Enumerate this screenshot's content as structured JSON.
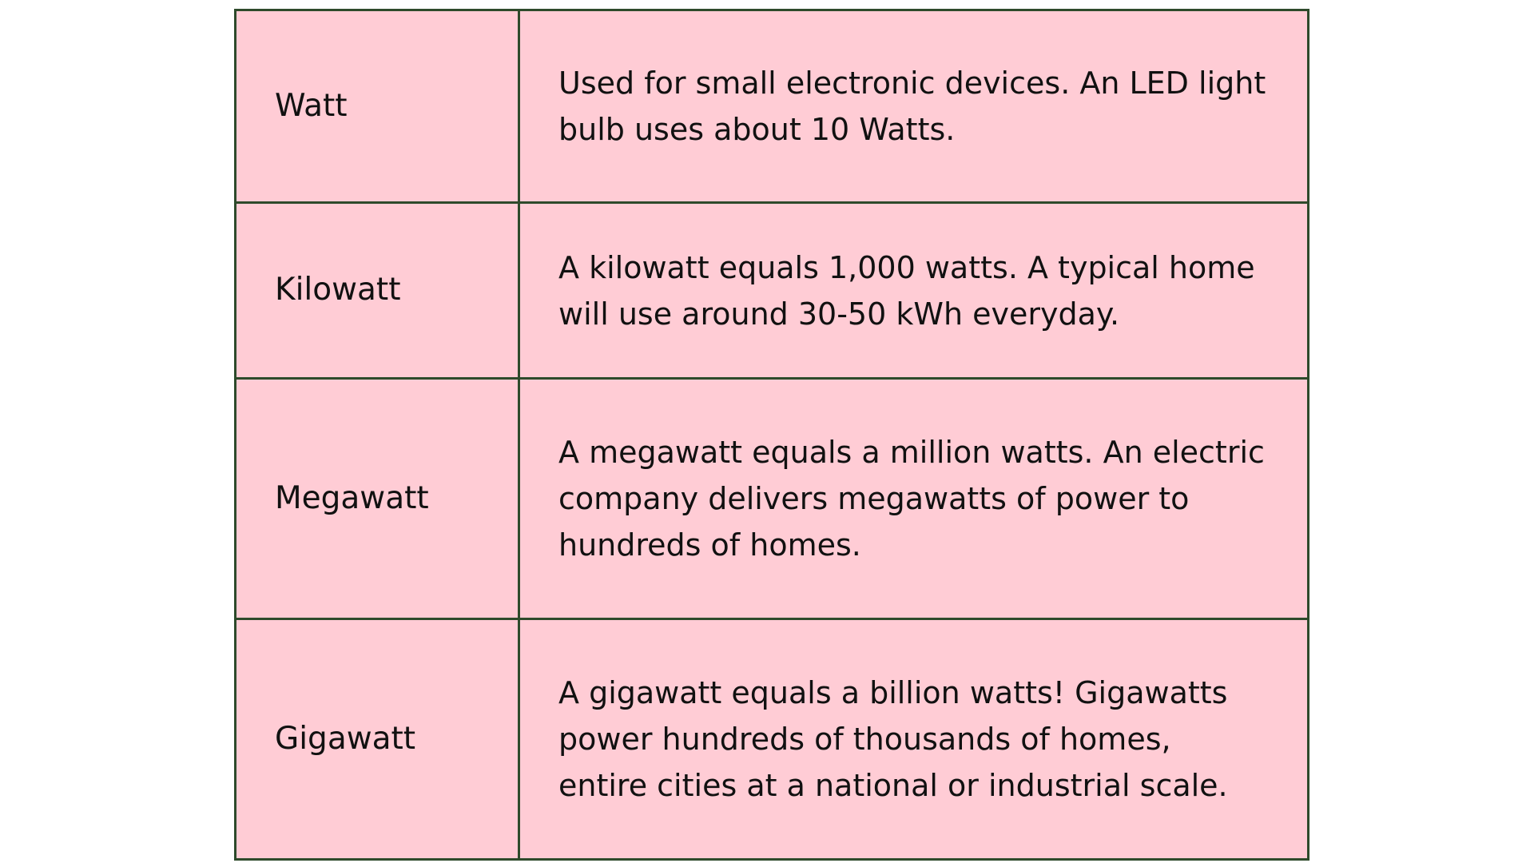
{
  "colors": {
    "cell_background": "#ffccd5",
    "border": "#2e4a2b",
    "text": "#111111"
  },
  "rows": [
    {
      "unit": "Watt",
      "description": "Used for small electronic devices. An LED light bulb uses about 10 Watts."
    },
    {
      "unit": "Kilowatt",
      "description": "A kilowatt equals 1,000 watts. A typical home will use around 30-50 kWh everyday."
    },
    {
      "unit": "Megawatt",
      "description": "A megawatt equals a million watts. An electric company delivers megawatts of power to hundreds of homes."
    },
    {
      "unit": "Gigawatt",
      "description": "A gigawatt equals a billion watts! Gigawatts power hundreds of thousands of homes, entire cities at a national or industrial scale."
    }
  ]
}
